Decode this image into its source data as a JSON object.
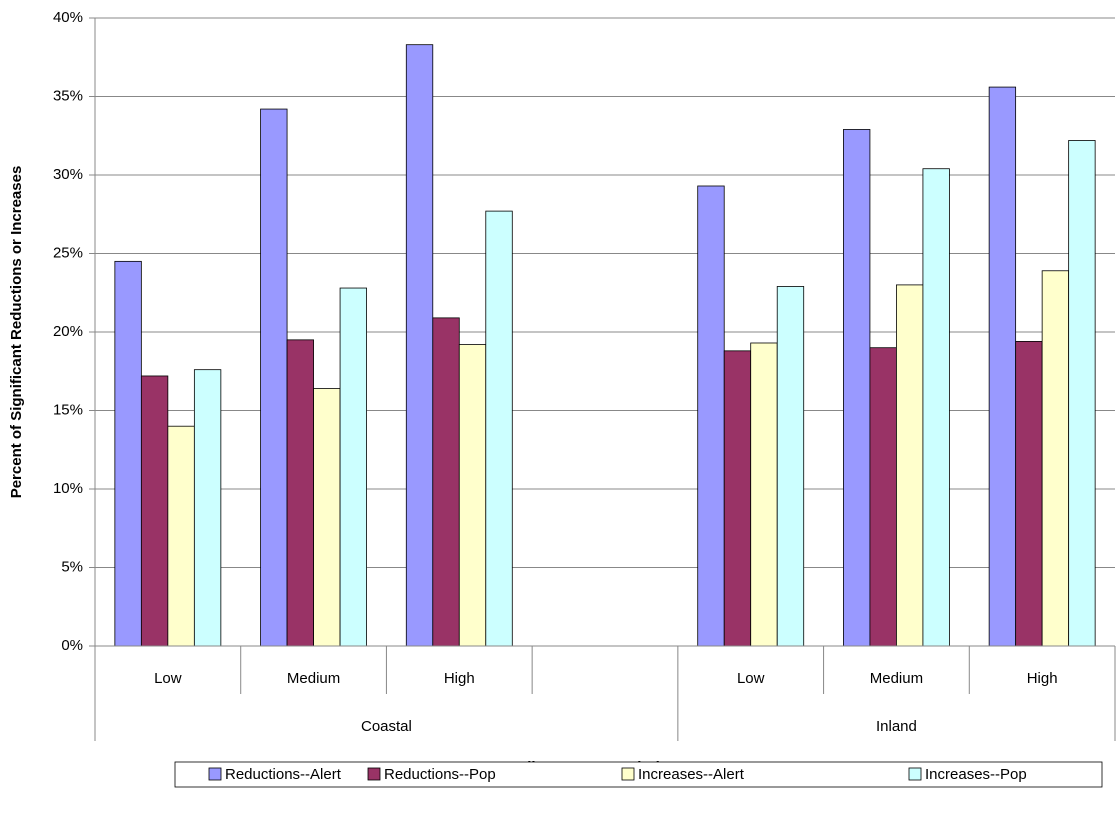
{
  "chart_data": {
    "type": "bar",
    "xlabel": "Climate Zone and Size",
    "ylabel": "Percent of Significant Reductions or Increases",
    "groups": [
      {
        "name": "Coastal",
        "categories": [
          "Low",
          "Medium",
          "High",
          null
        ]
      },
      {
        "name": "Inland",
        "categories": [
          "Low",
          "Medium",
          "High"
        ]
      }
    ],
    "series": [
      {
        "name": "Reductions--Alert",
        "color": "#9999ff",
        "values": [
          24.5,
          34.2,
          38.3,
          null,
          29.3,
          32.9,
          35.6
        ]
      },
      {
        "name": "Reductions--Pop",
        "color": "#993366",
        "values": [
          17.2,
          19.5,
          20.9,
          null,
          18.8,
          19.0,
          19.4
        ]
      },
      {
        "name": "Increases--Alert",
        "color": "#ffffcc",
        "values": [
          14.0,
          16.4,
          19.2,
          null,
          19.3,
          23.0,
          23.9
        ]
      },
      {
        "name": "Increases--Pop",
        "color": "#ccffff",
        "values": [
          17.6,
          22.8,
          27.7,
          null,
          22.9,
          30.4,
          32.2
        ]
      }
    ],
    "ylim": [
      0,
      40
    ],
    "yticks": [
      {
        "value": 0,
        "label": "0%"
      },
      {
        "value": 5,
        "label": "5%"
      },
      {
        "value": 10,
        "label": "10%"
      },
      {
        "value": 15,
        "label": "15%"
      },
      {
        "value": 20,
        "label": "20%"
      },
      {
        "value": 25,
        "label": "25%"
      },
      {
        "value": 30,
        "label": "30%"
      },
      {
        "value": 35,
        "label": "35%"
      },
      {
        "value": 40,
        "label": "40%"
      }
    ],
    "grid": true,
    "legend": "bottom"
  }
}
